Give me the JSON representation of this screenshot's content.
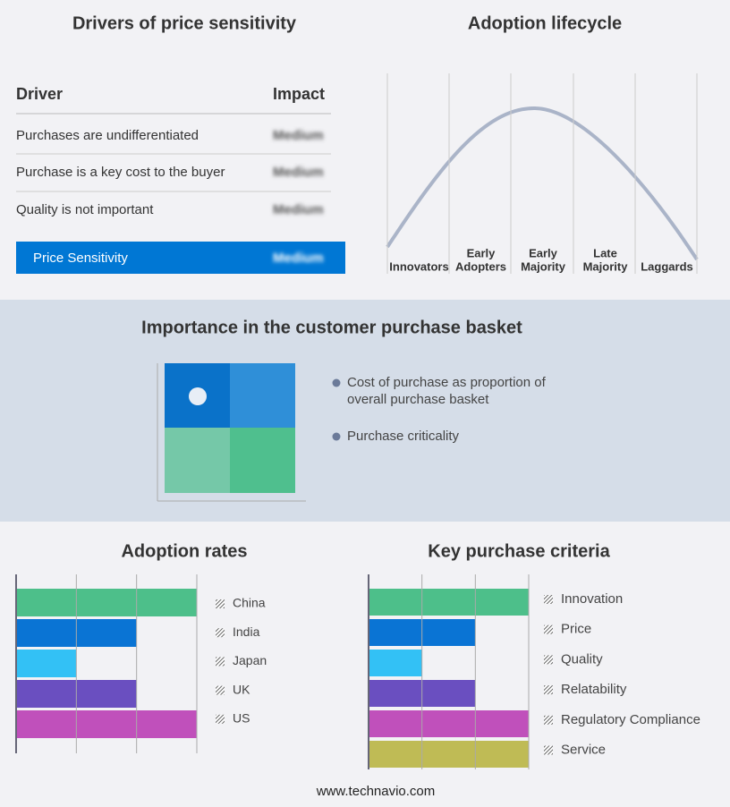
{
  "drivers": {
    "title": "Drivers of price sensitivity",
    "header": [
      "Driver",
      "Impact"
    ],
    "rows": [
      [
        "Purchases are undifferentiated",
        "Medium"
      ],
      [
        "Purchase is a key cost to the buyer",
        "Medium"
      ],
      [
        "Quality is not important",
        "Medium"
      ]
    ],
    "summary": [
      "Price Sensitivity",
      "Medium"
    ]
  },
  "adoption_lifecycle": {
    "title": "Adoption lifecycle",
    "stages": [
      [
        "Innovators"
      ],
      [
        "Early",
        "Adopters"
      ],
      [
        "Early",
        "Majority"
      ],
      [
        "Late",
        "Majority"
      ],
      [
        "Laggards"
      ]
    ]
  },
  "basket": {
    "title": "Importance in the customer purchase basket",
    "legend": [
      "Cost of purchase as proportion of overall purchase basket",
      "Purchase criticality"
    ]
  },
  "chart_data": [
    {
      "type": "bar",
      "title": "Adoption rates",
      "categories": [
        "China",
        "India",
        "Japan",
        "UK",
        "US"
      ],
      "values": [
        3,
        2,
        1,
        2,
        3
      ],
      "colors": [
        "#4dbf8a",
        "#0a74d4",
        "#33c1f5",
        "#6a4fc0",
        "#c050bb"
      ],
      "xlim": [
        0,
        3
      ],
      "xticks": [
        0,
        1,
        2,
        3
      ],
      "grid": true
    },
    {
      "type": "bar",
      "title": "Key purchase criteria",
      "categories": [
        "Innovation",
        "Price",
        "Quality",
        "Relatability",
        "Regulatory Compliance",
        "Service"
      ],
      "values": [
        3,
        2,
        1,
        2,
        3,
        3
      ],
      "colors": [
        "#4dbf8a",
        "#0a74d4",
        "#33c1f5",
        "#6a4fc0",
        "#c050bb",
        "#bfbb55"
      ],
      "xlim": [
        0,
        3
      ],
      "xticks": [
        0,
        1,
        2,
        3
      ],
      "grid": true
    }
  ],
  "footer": "www.technavio.com"
}
